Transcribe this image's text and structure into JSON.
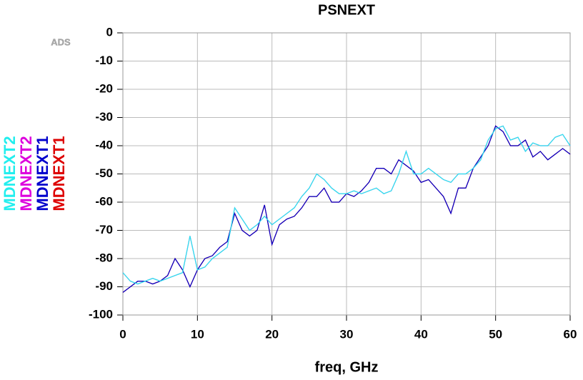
{
  "chart_data": {
    "type": "line",
    "title": "PSNEXT",
    "x_label": "freq, GHz",
    "watermark": "ADS",
    "x": [
      0,
      1,
      2,
      3,
      4,
      5,
      6,
      7,
      8,
      9,
      10,
      11,
      12,
      13,
      14,
      15,
      16,
      17,
      18,
      19,
      20,
      21,
      22,
      23,
      24,
      25,
      26,
      27,
      28,
      29,
      30,
      31,
      32,
      33,
      34,
      35,
      36,
      37,
      38,
      39,
      40,
      41,
      42,
      43,
      44,
      45,
      46,
      47,
      48,
      49,
      50,
      51,
      52,
      53,
      54,
      55,
      56,
      57,
      58,
      59,
      60
    ],
    "series": [
      {
        "name": "MDNEXT1",
        "color": "#dd0000",
        "values": [
          -92,
          -90,
          -88,
          -88,
          -89,
          -88,
          -86,
          -80,
          -84,
          -90,
          -84,
          -80,
          -79,
          -76,
          -74,
          -64,
          -70,
          -72,
          -70,
          -61,
          -75,
          -68,
          -66,
          -65,
          -62,
          -58,
          -58,
          -55,
          -60,
          -60,
          -57,
          -58,
          -56,
          -53,
          -48,
          -48,
          -50,
          -45,
          -47,
          -49,
          -53,
          -52,
          -55,
          -58,
          -64,
          -55,
          -55,
          -48,
          -44,
          -40,
          -33,
          -35,
          -40,
          -40,
          -38,
          -44,
          -42,
          -45,
          -43,
          -41,
          -43
        ]
      },
      {
        "name": "MDNEXT2",
        "color": "#dd00dd",
        "values": [
          -85,
          -88,
          -89,
          -88,
          -87,
          -88,
          -87,
          -86,
          -85,
          -72,
          -84,
          -83,
          -80,
          -78,
          -76,
          -62,
          -66,
          -70,
          -68,
          -65,
          -68,
          -66,
          -64,
          -62,
          -58,
          -55,
          -50,
          -52,
          -55,
          -57,
          -57,
          -56,
          -57,
          -56,
          -55,
          -57,
          -56,
          -50,
          -42,
          -50,
          -50,
          -48,
          -50,
          -52,
          -53,
          -50,
          -50,
          -48,
          -45,
          -38,
          -34,
          -33,
          -38,
          -37,
          -42,
          -39,
          -40,
          -40,
          -37,
          -36,
          -40
        ]
      },
      {
        "name": "MDNEXT1",
        "color": "#0000cc",
        "values": [
          -92,
          -90,
          -88,
          -88,
          -89,
          -88,
          -86,
          -80,
          -84,
          -90,
          -84,
          -80,
          -79,
          -76,
          -74,
          -64,
          -70,
          -72,
          -70,
          -61,
          -75,
          -68,
          -66,
          -65,
          -62,
          -58,
          -58,
          -55,
          -60,
          -60,
          -57,
          -58,
          -56,
          -53,
          -48,
          -48,
          -50,
          -45,
          -47,
          -49,
          -53,
          -52,
          -55,
          -58,
          -64,
          -55,
          -55,
          -48,
          -44,
          -40,
          -33,
          -35,
          -40,
          -40,
          -38,
          -44,
          -42,
          -45,
          -43,
          -41,
          -43
        ]
      },
      {
        "name": "MDNEXT2",
        "color": "#22eeee",
        "values": [
          -85,
          -88,
          -89,
          -88,
          -87,
          -88,
          -87,
          -86,
          -85,
          -72,
          -84,
          -83,
          -80,
          -78,
          -76,
          -62,
          -66,
          -70,
          -68,
          -65,
          -68,
          -66,
          -64,
          -62,
          -58,
          -55,
          -50,
          -52,
          -55,
          -57,
          -57,
          -56,
          -57,
          -56,
          -55,
          -57,
          -56,
          -50,
          -42,
          -50,
          -50,
          -48,
          -50,
          -52,
          -53,
          -50,
          -50,
          -48,
          -45,
          -38,
          -34,
          -33,
          -38,
          -37,
          -42,
          -39,
          -40,
          -40,
          -37,
          -36,
          -40
        ]
      }
    ],
    "legend_order": [
      3,
      1,
      2,
      0
    ],
    "xlim": [
      0,
      60
    ],
    "xticks": [
      0,
      10,
      20,
      30,
      40,
      50,
      60
    ],
    "ylim": [
      -100,
      0
    ],
    "yticks": [
      -100,
      -90,
      -80,
      -70,
      -60,
      -50,
      -40,
      -30,
      -20,
      -10,
      0
    ],
    "grid": true
  }
}
